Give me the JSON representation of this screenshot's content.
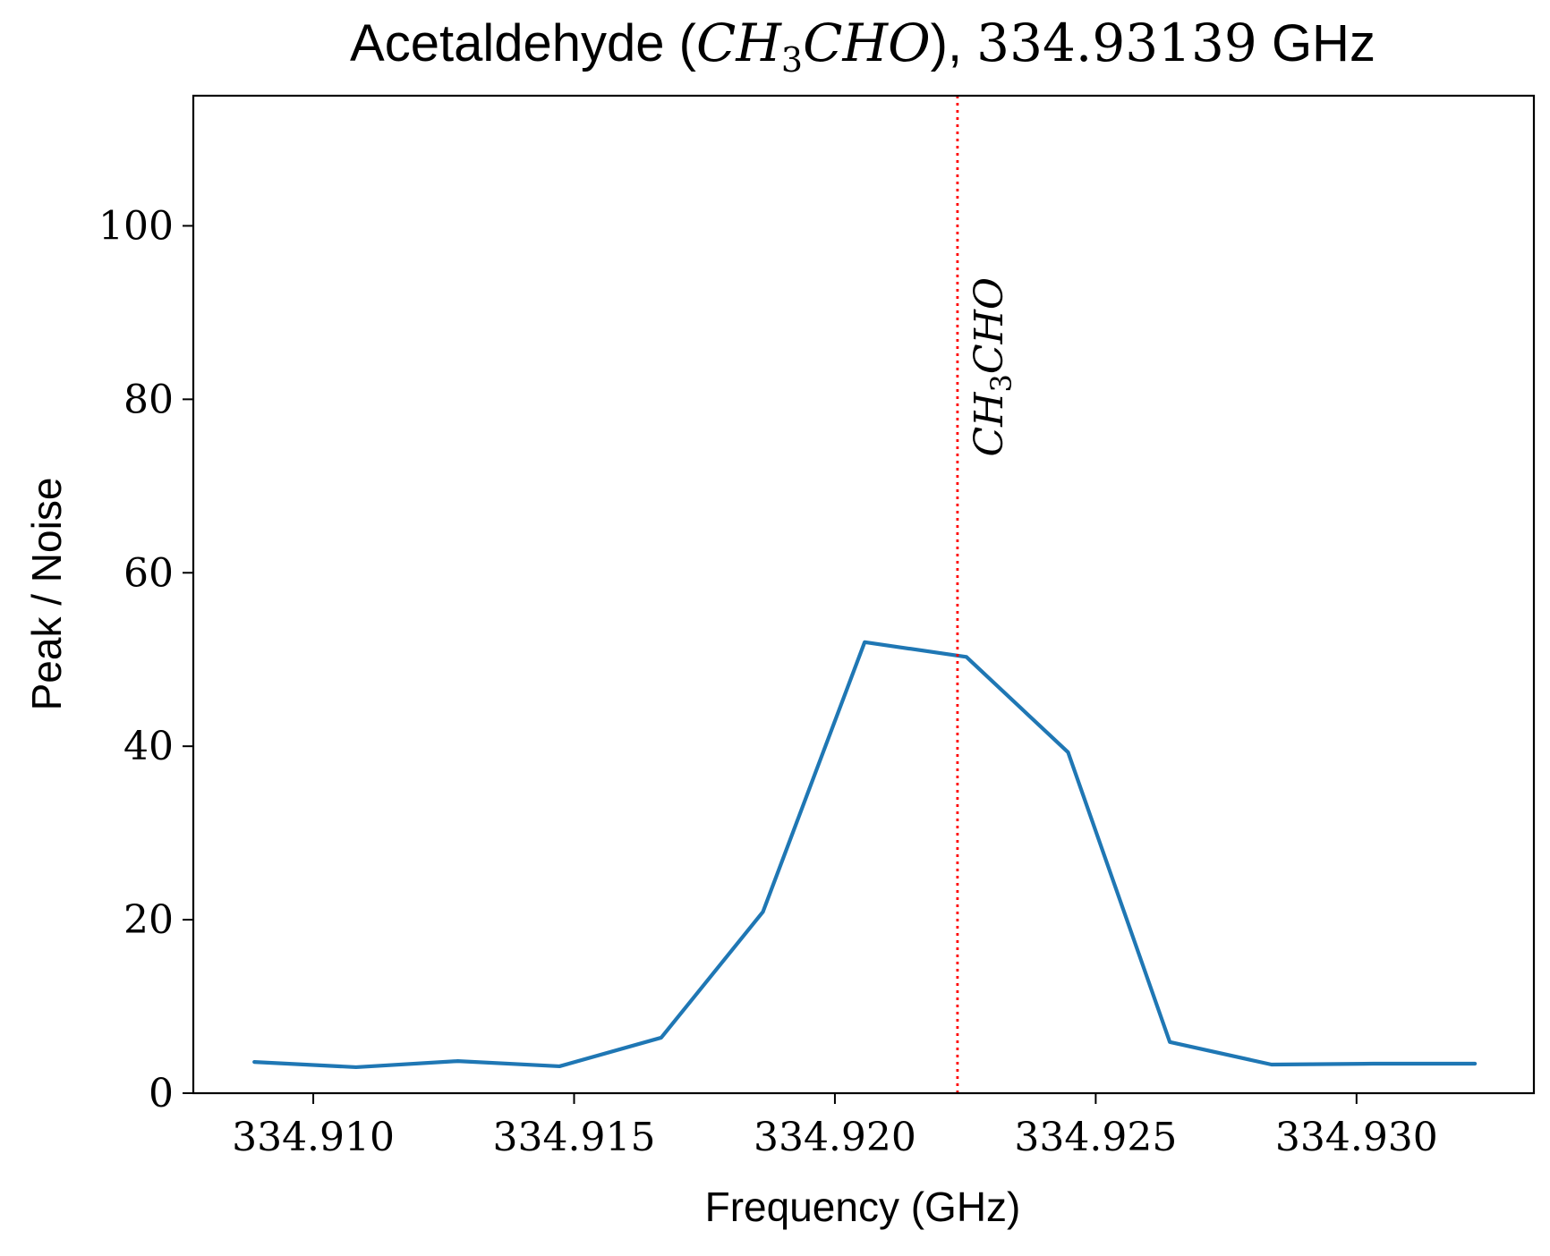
{
  "chart_data": {
    "type": "line",
    "title": {
      "prefix": "Acetaldehyde (",
      "formula": "CH",
      "formula_sub": "3",
      "formula_rest": "CHO",
      "middle": "), ",
      "frequency": "334.93139",
      "unit": " GHz"
    },
    "xlabel": "Frequency (GHz)",
    "ylabel": "Peak / Noise",
    "xlim": [
      334.9077,
      334.9334
    ],
    "ylim": [
      0,
      115
    ],
    "xticks": [
      334.91,
      334.915,
      334.92,
      334.925,
      334.93
    ],
    "xtick_labels": [
      "334.910",
      "334.915",
      "334.920",
      "334.925",
      "334.930"
    ],
    "yticks": [
      0,
      20,
      40,
      60,
      80,
      100
    ],
    "ytick_labels": [
      "0",
      "20",
      "40",
      "60",
      "80",
      "100"
    ],
    "grid": false,
    "series": [
      {
        "color": "#1f77b4",
        "x": [
          334.90887,
          334.91082,
          334.91277,
          334.91472,
          334.91667,
          334.91862,
          334.92057,
          334.92252,
          334.92447,
          334.92642,
          334.92837,
          334.93032,
          334.93227
        ],
        "y": [
          3.6,
          3.0,
          3.7,
          3.1,
          6.4,
          20.9,
          52.0,
          50.3,
          39.3,
          5.9,
          3.3,
          3.4,
          3.4
        ]
      }
    ],
    "annotations": [
      {
        "type": "vline",
        "x": 334.92235,
        "color": "#ff0000",
        "style": "dotted",
        "label_main": "CH",
        "label_sub": "3",
        "label_rest": "CHO"
      }
    ]
  }
}
